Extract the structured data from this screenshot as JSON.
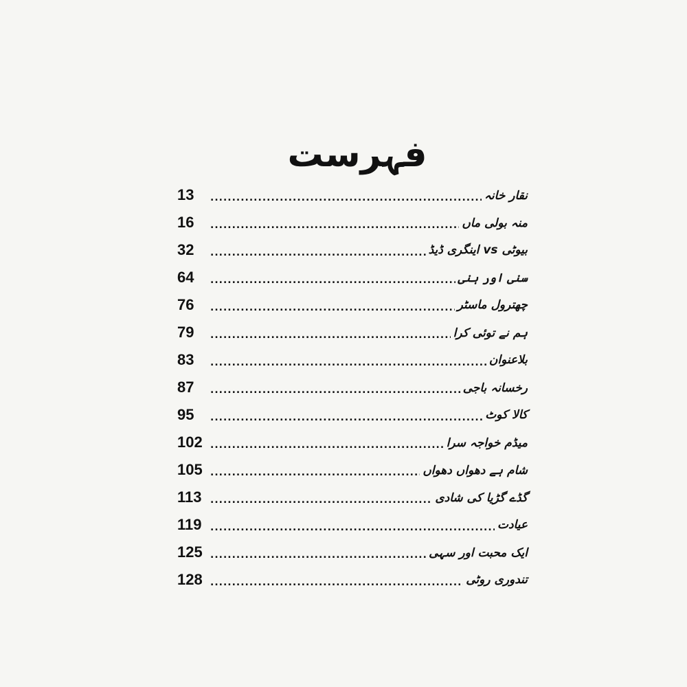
{
  "title": "فہرست",
  "entries": [
    {
      "label": "نقار خانہ",
      "page": "13"
    },
    {
      "label": "منہ بولی ماں",
      "page": "16"
    },
    {
      "label": "بیوٹی vs اینگری ڈیڈ",
      "page": "32"
    },
    {
      "label": "سنی اور ہنی",
      "page": "64"
    },
    {
      "label": "چھترول ماسٹر",
      "page": "76"
    },
    {
      "label": "ہم نے توئی کرا",
      "page": "79"
    },
    {
      "label": "بلاعنوان",
      "page": "83"
    },
    {
      "label": "رخسانہ باجی",
      "page": "87"
    },
    {
      "label": "کالا کوٹ",
      "page": "95"
    },
    {
      "label": "میڈم خواجہ سرا",
      "page": "102"
    },
    {
      "label": "شام ہے دھواں دھواں",
      "page": "105"
    },
    {
      "label": "گڈے گڑیا کی شادی",
      "page": "113"
    },
    {
      "label": "عیادت",
      "page": "119"
    },
    {
      "label": "ایک محبت اور سہی",
      "page": "125"
    },
    {
      "label": "تندوری روٹی",
      "page": "128"
    }
  ]
}
